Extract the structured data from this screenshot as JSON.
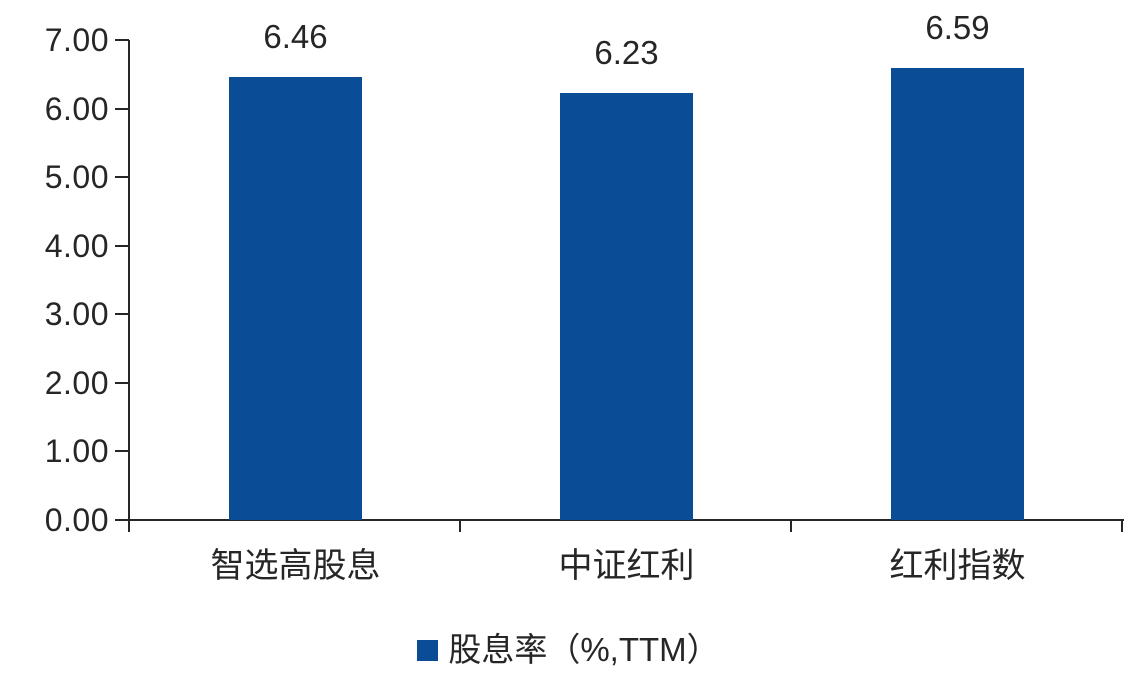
{
  "chart_data": {
    "type": "bar",
    "title": "",
    "xlabel": "",
    "ylabel": "",
    "categories": [
      "智选高股息",
      "中证红利",
      "红利指数"
    ],
    "values": [
      6.46,
      6.23,
      6.59
    ],
    "value_labels": [
      "6.46",
      "6.23",
      "6.59"
    ],
    "series": [
      {
        "name": "股息率（%,TTM）",
        "values": [
          6.46,
          6.23,
          6.59
        ]
      }
    ],
    "legend": {
      "label": "股息率（%,TTM）",
      "position": "bottom-center",
      "marker": "square-icon"
    },
    "ylim": [
      0,
      7
    ],
    "ytick_step": 1,
    "ytick_labels": [
      "0.00",
      "1.00",
      "2.00",
      "3.00",
      "4.00",
      "5.00",
      "6.00",
      "7.00"
    ],
    "grid": false,
    "colors": {
      "bar": "#0A4D96",
      "axis": "#262626",
      "text": "#262626",
      "background": "#FFFFFF"
    }
  }
}
